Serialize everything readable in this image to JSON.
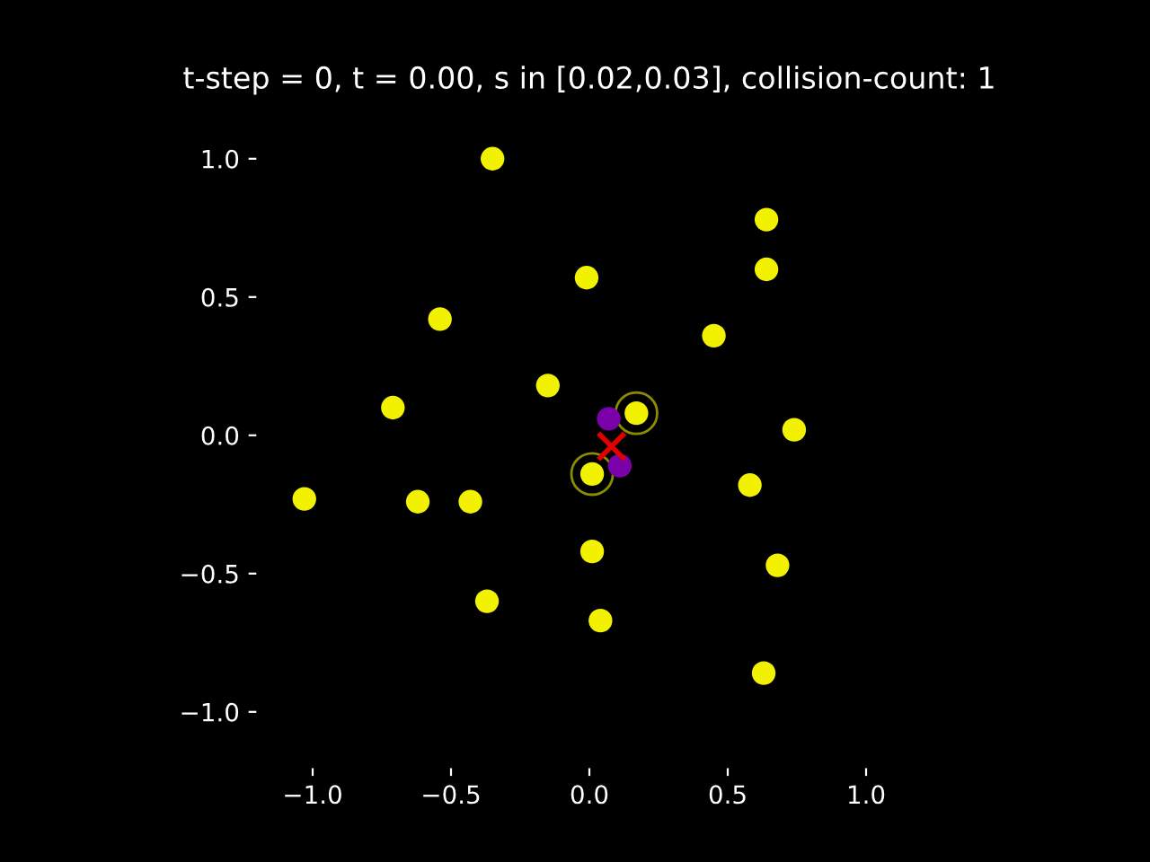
{
  "chart_data": {
    "type": "scatter",
    "title": "t-step = 0, t = 0.00, s in [0.02,0.03], collision-count: 1",
    "xlim": [
      -1.2,
      1.2
    ],
    "ylim": [
      -1.2,
      1.2
    ],
    "xticks": [
      {
        "value": -1.0,
        "label": "−1.0"
      },
      {
        "value": -0.5,
        "label": "−0.5"
      },
      {
        "value": 0.0,
        "label": "0.0"
      },
      {
        "value": 0.5,
        "label": "0.5"
      },
      {
        "value": 1.0,
        "label": "1.0"
      }
    ],
    "yticks": [
      {
        "value": -1.0,
        "label": "−1.0"
      },
      {
        "value": -0.5,
        "label": "−0.5"
      },
      {
        "value": 0.0,
        "label": "0.0"
      },
      {
        "value": 0.5,
        "label": "0.5"
      },
      {
        "value": 1.0,
        "label": "1.0"
      }
    ],
    "grid": false,
    "legend": false,
    "series": [
      {
        "marker": "circle",
        "color": "#f2f200",
        "x": [
          0.64,
          0.64,
          -0.01,
          0.45,
          0.74,
          0.58,
          0.01,
          0.68,
          0.04,
          0.63,
          -0.35,
          -0.54,
          -0.15,
          -0.71,
          -1.03,
          -0.62,
          -0.43,
          -0.37,
          0.17,
          0.01
        ],
        "values": [
          0.78,
          0.6,
          0.57,
          0.36,
          0.02,
          -0.18,
          -0.42,
          -0.47,
          -0.67,
          -0.86,
          1.0,
          0.42,
          0.18,
          0.1,
          -0.23,
          -0.24,
          -0.24,
          -0.6,
          0.08,
          -0.14
        ]
      },
      {
        "type": "bubble",
        "color": "#8c8c00",
        "x": [
          0.17,
          0.01
        ],
        "values": [
          0.08,
          -0.14
        ],
        "sizes": [
          1,
          1
        ]
      },
      {
        "type": "scatter",
        "marker": "circle",
        "color": "#7a00a8",
        "x": [
          0.07,
          0.11
        ],
        "values": [
          0.06,
          -0.11
        ]
      },
      {
        "type": "scatter",
        "marker": "cross",
        "color": "#e00000",
        "x": [
          0.08
        ],
        "values": [
          -0.04
        ]
      }
    ]
  }
}
